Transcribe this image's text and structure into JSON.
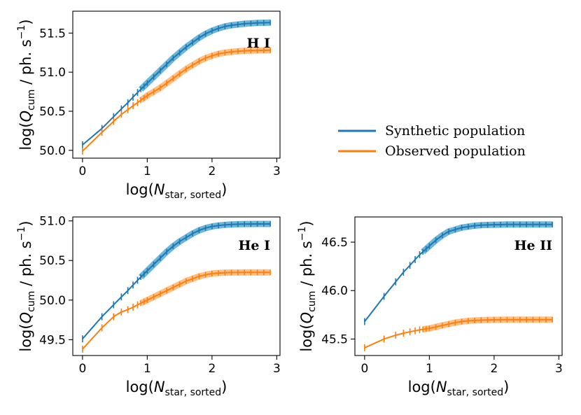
{
  "colors": {
    "synthetic": "#1f77b4",
    "synthetic_band": "#3b9fc9",
    "observed": "#ff7f0e",
    "observed_band": "#ffab5e"
  },
  "legend": {
    "entries": [
      "Synthetic population",
      "Observed population"
    ],
    "placement": "right of top-left panel"
  },
  "chart_data": [
    {
      "type": "line",
      "panel_label": "H I",
      "xlabel": "log(N_star, sorted)",
      "ylabel": "log(Q_cum / ph. s^-1)",
      "xlim": [
        -0.15,
        3.05
      ],
      "ylim": [
        49.9,
        51.78
      ],
      "xticks": [
        "0",
        "1",
        "2",
        "3"
      ],
      "yticks": [
        "50.0",
        "50.5",
        "51.0",
        "51.5"
      ],
      "legend_placement": "outside right",
      "series": [
        {
          "name": "Synthetic population",
          "x": [
            0,
            0.3,
            0.48,
            0.6,
            0.7,
            0.78,
            0.85,
            0.9,
            0.95,
            1.0,
            1.1,
            1.2,
            1.3,
            1.4,
            1.5,
            1.6,
            1.7,
            1.8,
            1.9,
            2.0,
            2.1,
            2.2,
            2.3,
            2.4,
            2.5,
            2.6,
            2.7,
            2.8,
            2.9
          ],
          "values": [
            50.07,
            50.28,
            50.43,
            50.53,
            50.61,
            50.68,
            50.74,
            50.78,
            50.82,
            50.86,
            50.94,
            51.02,
            51.1,
            51.18,
            51.25,
            51.32,
            51.38,
            51.44,
            51.49,
            51.53,
            51.56,
            51.585,
            51.6,
            51.61,
            51.62,
            51.625,
            51.63,
            51.632,
            51.634
          ]
        },
        {
          "name": "Observed population",
          "x": [
            0,
            0.3,
            0.48,
            0.6,
            0.7,
            0.78,
            0.85,
            0.9,
            0.95,
            1.0,
            1.1,
            1.2,
            1.3,
            1.4,
            1.5,
            1.6,
            1.7,
            1.8,
            1.9,
            2.0,
            2.1,
            2.2,
            2.3,
            2.4,
            2.5,
            2.6,
            2.7,
            2.8,
            2.9
          ],
          "values": [
            49.99,
            50.23,
            50.37,
            50.46,
            50.52,
            50.57,
            50.61,
            50.64,
            50.67,
            50.7,
            50.75,
            50.8,
            50.86,
            50.92,
            50.98,
            51.04,
            51.09,
            51.14,
            51.18,
            51.21,
            51.235,
            51.25,
            51.26,
            51.268,
            51.273,
            51.276,
            51.278,
            51.279,
            51.28
          ]
        }
      ]
    },
    {
      "type": "line",
      "panel_label": "He I",
      "xlabel": "log(N_star, sorted)",
      "ylabel": "log(Q_cum / ph. s^-1)",
      "xlim": [
        -0.15,
        3.05
      ],
      "ylim": [
        49.3,
        51.05
      ],
      "xticks": [
        "0",
        "1",
        "2",
        "3"
      ],
      "yticks": [
        "49.5",
        "50.0",
        "50.5",
        "51.0"
      ],
      "series": [
        {
          "name": "Synthetic population",
          "x": [
            0,
            0.3,
            0.48,
            0.6,
            0.7,
            0.78,
            0.85,
            0.9,
            0.95,
            1.0,
            1.1,
            1.2,
            1.3,
            1.4,
            1.5,
            1.6,
            1.7,
            1.8,
            1.9,
            2.0,
            2.1,
            2.2,
            2.3,
            2.4,
            2.5,
            2.6,
            2.7,
            2.8,
            2.9
          ],
          "values": [
            49.51,
            49.79,
            49.94,
            50.04,
            50.12,
            50.19,
            50.25,
            50.29,
            50.33,
            50.37,
            50.45,
            50.53,
            50.61,
            50.68,
            50.74,
            50.79,
            50.84,
            50.88,
            50.91,
            50.93,
            50.942,
            50.95,
            50.955,
            50.958,
            50.96,
            50.961,
            50.962,
            50.962,
            50.962
          ]
        },
        {
          "name": "Observed population",
          "x": [
            0,
            0.3,
            0.48,
            0.6,
            0.7,
            0.78,
            0.85,
            0.9,
            0.95,
            1.0,
            1.1,
            1.2,
            1.3,
            1.4,
            1.5,
            1.6,
            1.7,
            1.8,
            1.9,
            2.0,
            2.1,
            2.2,
            2.3,
            2.4,
            2.5,
            2.6,
            2.7,
            2.8,
            2.9
          ],
          "values": [
            49.38,
            49.65,
            49.79,
            49.85,
            49.88,
            49.91,
            49.94,
            49.96,
            49.98,
            50.0,
            50.04,
            50.08,
            50.12,
            50.16,
            50.2,
            50.24,
            50.27,
            50.3,
            50.32,
            50.335,
            50.342,
            50.346,
            50.348,
            50.349,
            50.35,
            50.35,
            50.35,
            50.35,
            50.35
          ]
        }
      ]
    },
    {
      "type": "line",
      "panel_label": "He II",
      "xlabel": "log(N_star, sorted)",
      "ylabel": "log(Q_cum / ph. s^-1)",
      "xlim": [
        -0.15,
        3.05
      ],
      "ylim": [
        45.33,
        46.76
      ],
      "xticks": [
        "0",
        "1",
        "2",
        "3"
      ],
      "yticks": [
        "45.5",
        "46.0",
        "46.5"
      ],
      "series": [
        {
          "name": "Synthetic population",
          "x": [
            0,
            0.3,
            0.48,
            0.6,
            0.7,
            0.78,
            0.85,
            0.9,
            0.95,
            1.0,
            1.1,
            1.2,
            1.3,
            1.4,
            1.5,
            1.6,
            1.7,
            1.8,
            1.9,
            2.0,
            2.1,
            2.2,
            2.3,
            2.4,
            2.5,
            2.6,
            2.7,
            2.8,
            2.9
          ],
          "values": [
            45.68,
            45.94,
            46.09,
            46.19,
            46.26,
            46.32,
            46.37,
            46.4,
            46.43,
            46.46,
            46.52,
            46.57,
            46.61,
            46.63,
            46.65,
            46.66,
            46.67,
            46.675,
            46.678,
            46.68,
            46.681,
            46.682,
            46.682,
            46.682,
            46.682,
            46.682,
            46.682,
            46.682,
            46.682
          ]
        },
        {
          "name": "Observed population",
          "x": [
            0,
            0.3,
            0.48,
            0.6,
            0.7,
            0.78,
            0.85,
            0.9,
            0.95,
            1.0,
            1.1,
            1.2,
            1.3,
            1.4,
            1.5,
            1.6,
            1.7,
            1.8,
            1.9,
            2.0,
            2.1,
            2.2,
            2.3,
            2.4,
            2.5,
            2.6,
            2.7,
            2.8,
            2.9
          ],
          "values": [
            45.41,
            45.5,
            45.54,
            45.56,
            45.575,
            45.585,
            45.595,
            45.6,
            45.605,
            45.61,
            45.625,
            45.64,
            45.655,
            45.67,
            45.68,
            45.688,
            45.692,
            45.695,
            45.697,
            45.698,
            45.699,
            45.7,
            45.7,
            45.7,
            45.7,
            45.7,
            45.7,
            45.7,
            45.7
          ]
        }
      ]
    }
  ]
}
